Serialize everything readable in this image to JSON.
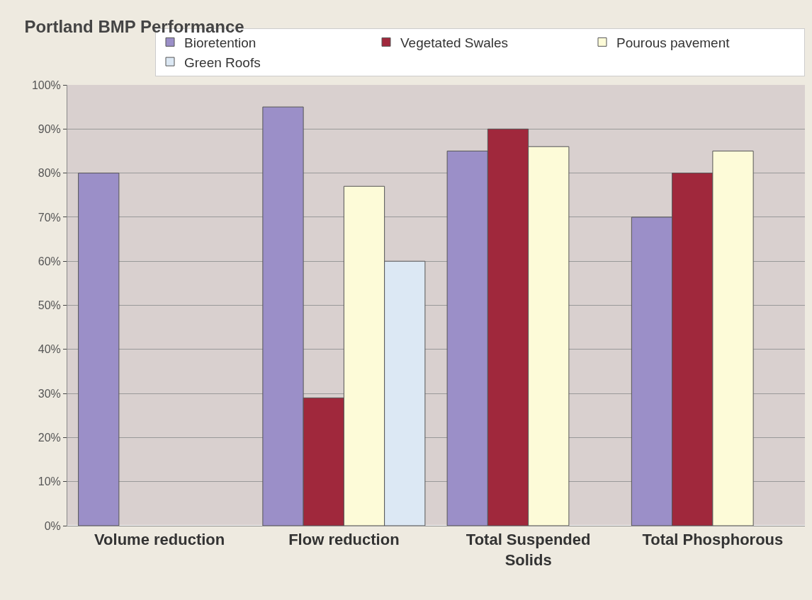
{
  "chart_data": {
    "type": "bar",
    "title": "Portland BMP Performance",
    "categories": [
      "Volume reduction",
      "Flow reduction",
      "Total Suspended Solids",
      "Total Phosphorous"
    ],
    "series": [
      {
        "name": "Bioretention",
        "color": "#9b8fc8",
        "values": [
          80,
          95,
          85,
          70
        ]
      },
      {
        "name": "Vegetated Swales",
        "color": "#a0283c",
        "values": [
          null,
          29,
          90,
          80
        ]
      },
      {
        "name": "Pourous pavement",
        "color": "#fdfbd8",
        "values": [
          null,
          77,
          86,
          85
        ]
      },
      {
        "name": "Green Roofs",
        "color": "#dce8f4",
        "values": [
          null,
          60,
          null,
          null
        ]
      }
    ],
    "ylim": [
      0,
      100
    ],
    "yticks": [
      {
        "value": 0,
        "label": "0%"
      },
      {
        "value": 10,
        "label": "10%"
      },
      {
        "value": 20,
        "label": "20%"
      },
      {
        "value": 30,
        "label": "30%"
      },
      {
        "value": 40,
        "label": "40%"
      },
      {
        "value": 50,
        "label": "50%"
      },
      {
        "value": 60,
        "label": "60%"
      },
      {
        "value": 70,
        "label": "70%"
      },
      {
        "value": 80,
        "label": "80%"
      },
      {
        "value": 90,
        "label": "90%"
      },
      {
        "value": 100,
        "label": "100%"
      }
    ],
    "grid": "y",
    "legend": "top right"
  }
}
